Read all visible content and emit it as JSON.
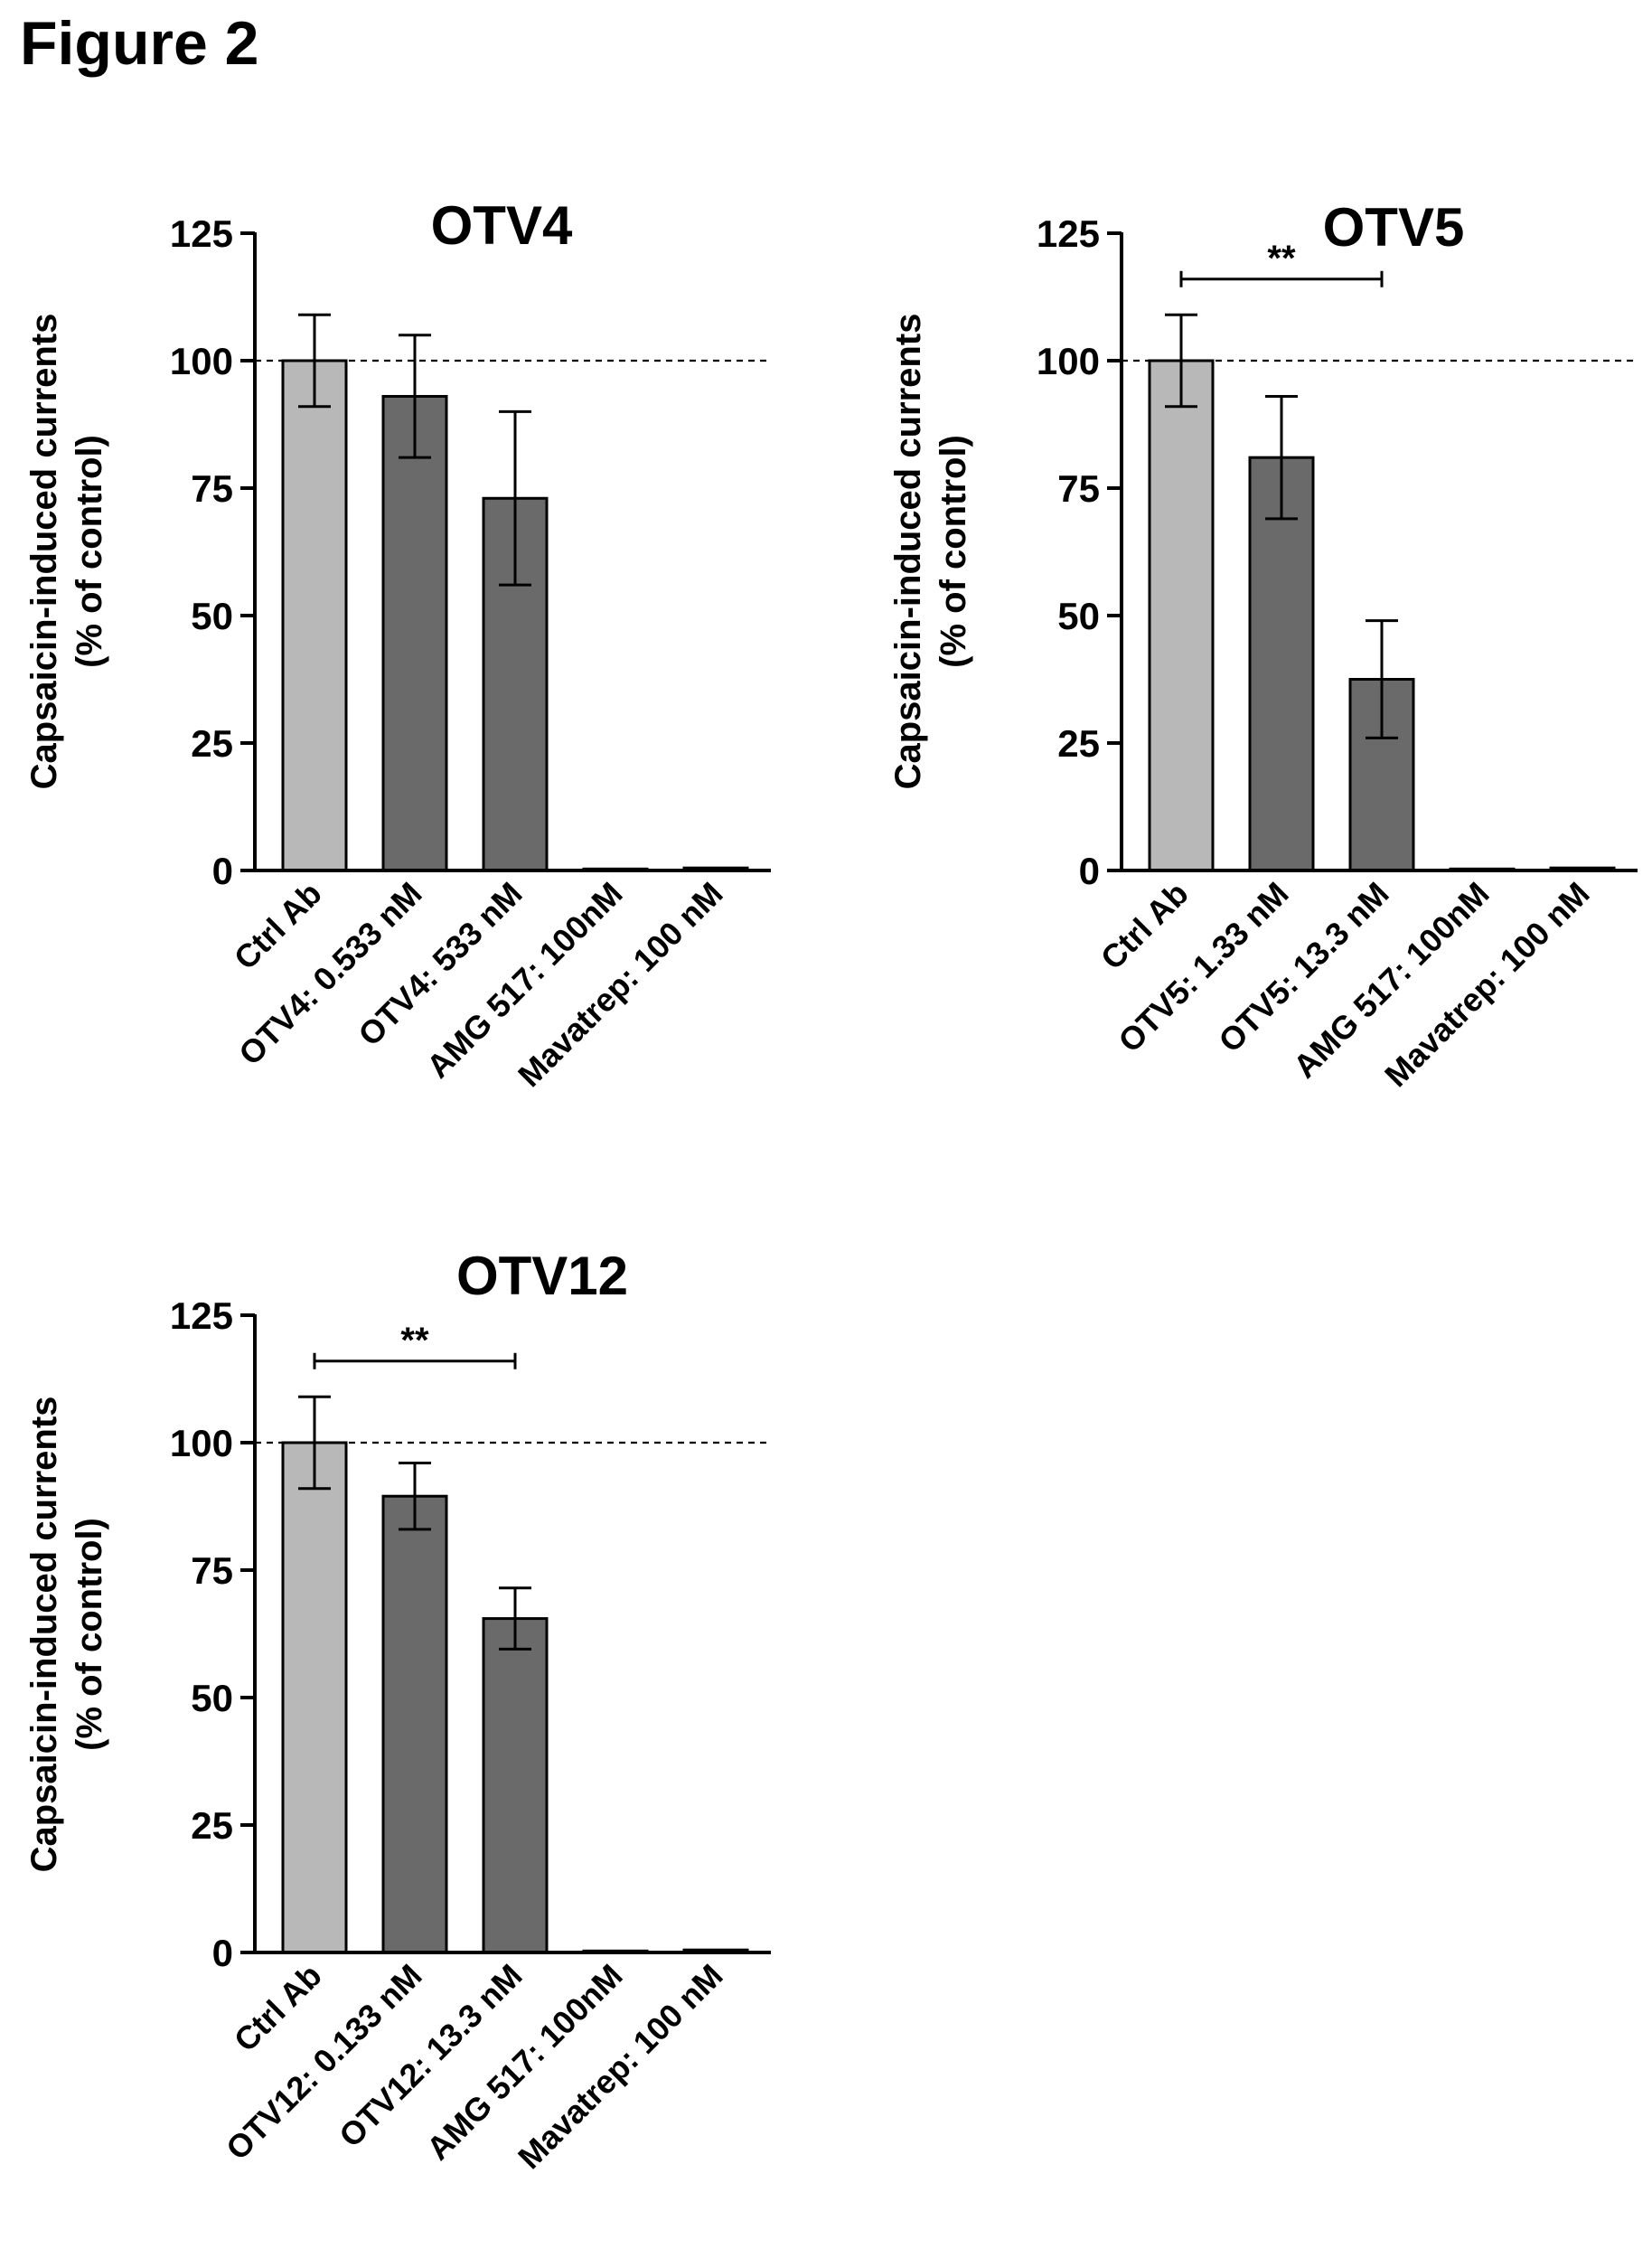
{
  "figure_title": "Figure 2",
  "colors": {
    "light_bar": "#b8b8b8",
    "dark_bar": "#6a6a6a",
    "axis": "#000000",
    "reference_line": "#000000"
  },
  "chart_data": [
    {
      "type": "bar",
      "title": "OTV4",
      "ylabel": [
        "Capsaicin-induced currents",
        "(% of control)"
      ],
      "xlabel": "",
      "ylim": [
        0,
        125
      ],
      "yticks": [
        "0",
        "25",
        "50",
        "75",
        "100",
        "125"
      ],
      "grid": false,
      "reference_line": 100,
      "categories": [
        "Ctrl Ab",
        "OTV4: 0.533 nM",
        "OTV4: 533 nM",
        "AMG 517: 100nM",
        "Mavatrep: 100 nM"
      ],
      "values": [
        100,
        93,
        73,
        0.3,
        0.5
      ],
      "errors": [
        9,
        12,
        17,
        0,
        0
      ],
      "bar_shades": [
        "light",
        "dark",
        "dark",
        "dark",
        "dark"
      ],
      "significance": []
    },
    {
      "type": "bar",
      "title": "OTV5",
      "ylabel": [
        "Capsaicin-induced currents",
        "(% of control)"
      ],
      "xlabel": "",
      "ylim": [
        0,
        125
      ],
      "yticks": [
        "0",
        "25",
        "50",
        "75",
        "100",
        "125"
      ],
      "grid": false,
      "reference_line": 100,
      "categories": [
        "Ctrl Ab",
        "OTV5: 1.33 nM",
        "OTV5: 13.3 nM",
        "AMG 517: 100nM",
        "Mavatrep: 100 nM"
      ],
      "values": [
        100,
        81,
        37.5,
        0.3,
        0.5
      ],
      "errors": [
        9,
        12,
        11.5,
        0,
        0
      ],
      "bar_shades": [
        "light",
        "dark",
        "dark",
        "dark",
        "dark"
      ],
      "significance": [
        {
          "from": 0,
          "to": 2,
          "level": 116,
          "label": "**"
        }
      ]
    },
    {
      "type": "bar",
      "title": "OTV12",
      "ylabel": [
        "Capsaicin-induced currents",
        "(% of control)"
      ],
      "xlabel": "",
      "ylim": [
        0,
        125
      ],
      "yticks": [
        "0",
        "25",
        "50",
        "75",
        "100",
        "125"
      ],
      "grid": false,
      "reference_line": 100,
      "categories": [
        "Ctrl Ab",
        "OTV12: 0.133 nM",
        "OTV12: 13.3 nM",
        "AMG 517: 100nM",
        "Mavatrep: 100 nM"
      ],
      "values": [
        100,
        89.5,
        65.5,
        0.3,
        0.5
      ],
      "errors": [
        9,
        6.5,
        6,
        0,
        0
      ],
      "bar_shades": [
        "light",
        "dark",
        "dark",
        "dark",
        "dark"
      ],
      "significance": [
        {
          "from": 0,
          "to": 2,
          "level": 116,
          "label": "**"
        }
      ]
    }
  ]
}
